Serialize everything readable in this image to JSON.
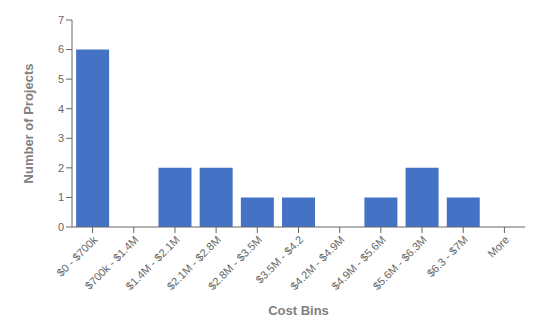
{
  "chart_data": {
    "type": "bar",
    "categories": [
      "$0 - $700k",
      "$700k - $1.4M",
      "$1.4M - $2.1M",
      "$2.1M - $2.8M",
      "$2.8M - $3.5M",
      "$3.5M - $4.2",
      "$4.2M - $4.9M",
      "$4.9M - $5.6M",
      "$5.6M - $6.3M",
      "$6.3 - $7M",
      "More"
    ],
    "values": [
      6,
      0,
      2,
      2,
      1,
      1,
      0,
      1,
      2,
      1,
      0
    ],
    "color": "#4472C4",
    "xlabel": "Cost Bins",
    "ylabel": "Number of Projects",
    "ylim": [
      0,
      7
    ],
    "yticks": [
      0,
      1,
      2,
      3,
      4,
      5,
      6,
      7
    ],
    "grid": false
  }
}
